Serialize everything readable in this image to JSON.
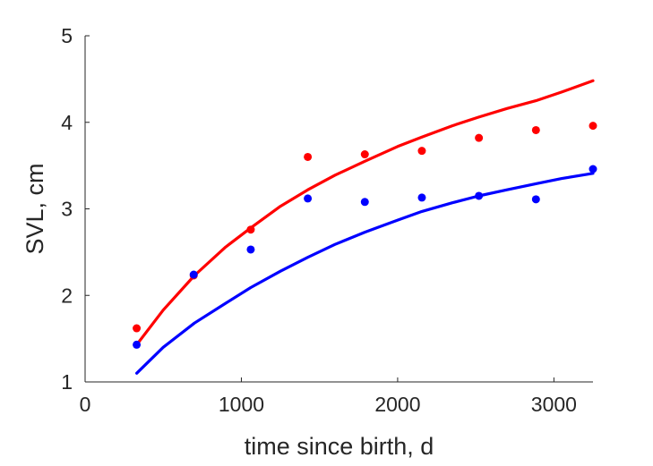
{
  "chart_data": {
    "type": "scatter",
    "title": "",
    "xlabel": "time since birth, d",
    "ylabel": "SVL, cm",
    "xlim": [
      0,
      3250
    ],
    "ylim": [
      1,
      5
    ],
    "xticks": [
      0,
      1000,
      2000,
      3000
    ],
    "yticks": [
      1,
      2,
      3,
      4,
      5
    ],
    "grid": false,
    "legend": "none",
    "series": [
      {
        "kind": "points",
        "color": "#ff0000",
        "x": [
          330,
          695,
          1060,
          1425,
          1790,
          2155,
          2520,
          2885,
          3250
        ],
        "y": [
          1.62,
          2.23,
          2.76,
          3.6,
          3.63,
          3.67,
          3.82,
          3.91,
          3.96
        ]
      },
      {
        "kind": "points",
        "color": "#0000ff",
        "x": [
          330,
          695,
          1060,
          1425,
          1790,
          2155,
          2520,
          2885,
          3250
        ],
        "y": [
          1.43,
          2.24,
          2.53,
          3.12,
          3.08,
          3.13,
          3.15,
          3.11,
          3.46
        ]
      },
      {
        "kind": "curve",
        "color": "#ff0000",
        "x": [
          330,
          500,
          700,
          900,
          1060,
          1250,
          1425,
          1600,
          1790,
          2000,
          2155,
          2350,
          2520,
          2700,
          2885,
          3050,
          3250
        ],
        "y": [
          1.43,
          1.83,
          2.23,
          2.56,
          2.78,
          3.03,
          3.22,
          3.39,
          3.55,
          3.72,
          3.83,
          3.96,
          4.06,
          4.16,
          4.25,
          4.35,
          4.48
        ]
      },
      {
        "kind": "curve",
        "color": "#0000ff",
        "x": [
          330,
          500,
          700,
          900,
          1060,
          1250,
          1425,
          1600,
          1790,
          2000,
          2155,
          2350,
          2520,
          2700,
          2885,
          3050,
          3250
        ],
        "y": [
          1.1,
          1.4,
          1.68,
          1.91,
          2.09,
          2.28,
          2.44,
          2.59,
          2.73,
          2.87,
          2.97,
          3.07,
          3.15,
          3.22,
          3.29,
          3.35,
          3.41
        ]
      }
    ]
  }
}
